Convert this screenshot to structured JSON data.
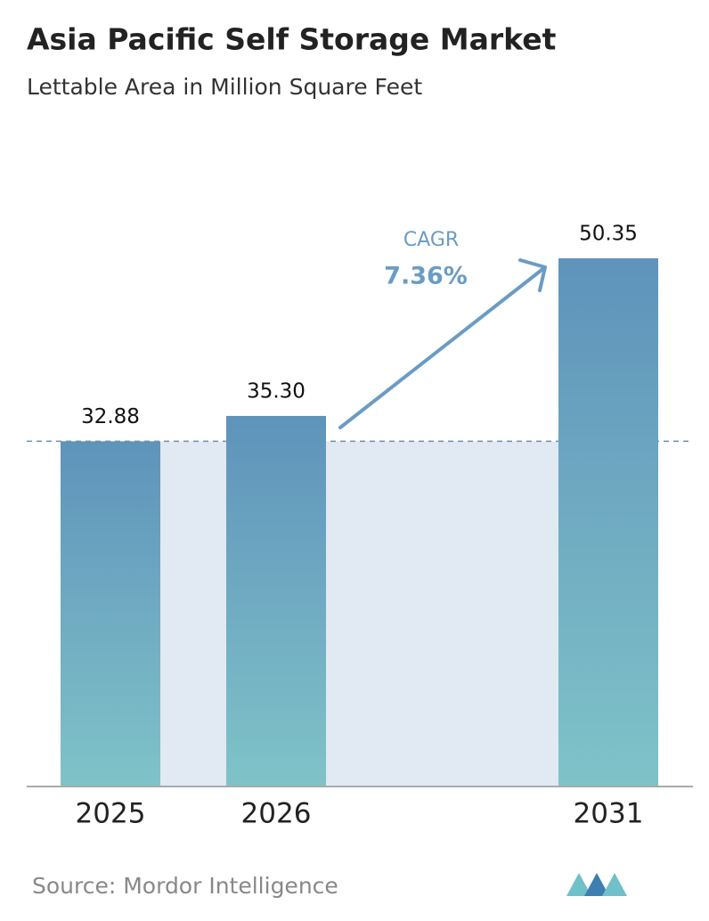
{
  "chart_data": {
    "type": "bar",
    "title": "Asia Pacific Self Storage Market",
    "subtitle": "Lettable Area in Million Square Feet",
    "categories": [
      "2025",
      "2026",
      "2031"
    ],
    "values": [
      32.88,
      35.3,
      50.35
    ],
    "value_labels": [
      "32.88",
      "35.30",
      "50.35"
    ],
    "color": "#5f93bb",
    "color_bottom": "#7fc3c8",
    "annotation": {
      "label": "CAGR",
      "value": "7.36%"
    },
    "source": "Source:  Mordor Intelligence"
  }
}
